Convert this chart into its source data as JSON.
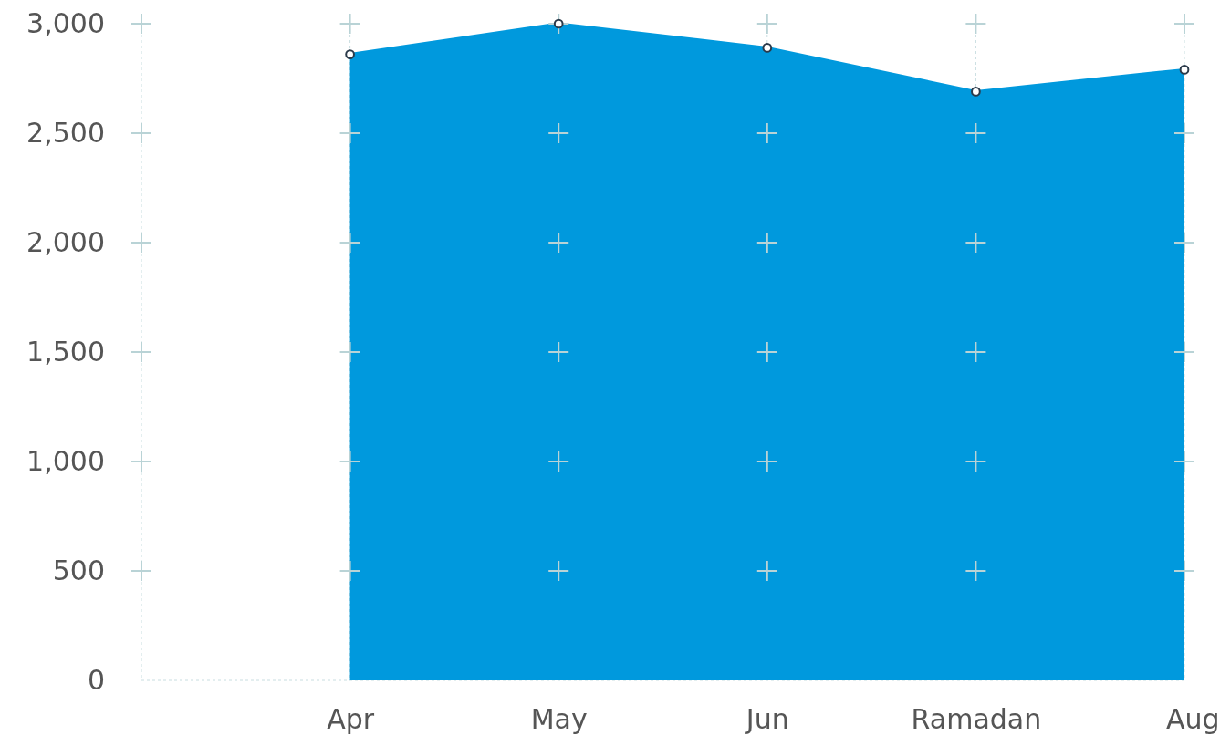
{
  "chart_data": {
    "type": "area",
    "categories": [
      null,
      "Apr",
      "May",
      "Jun",
      "Ramadan",
      "Aug"
    ],
    "series": [
      {
        "color": "#0099dd",
        "values": [
          null,
          2860,
          3000,
          2890,
          2690,
          2790
        ]
      }
    ],
    "ylim": [
      0,
      3000
    ],
    "yticks": [
      {
        "value": 0,
        "label": "0"
      },
      {
        "value": 500,
        "label": "500"
      },
      {
        "value": 1000,
        "label": "1,000"
      },
      {
        "value": 1500,
        "label": "1,500"
      },
      {
        "value": 2000,
        "label": "2,000"
      },
      {
        "value": 2500,
        "label": "2,500"
      },
      {
        "value": 3000,
        "label": "3,000"
      }
    ],
    "grid": true,
    "marker": "circle"
  }
}
